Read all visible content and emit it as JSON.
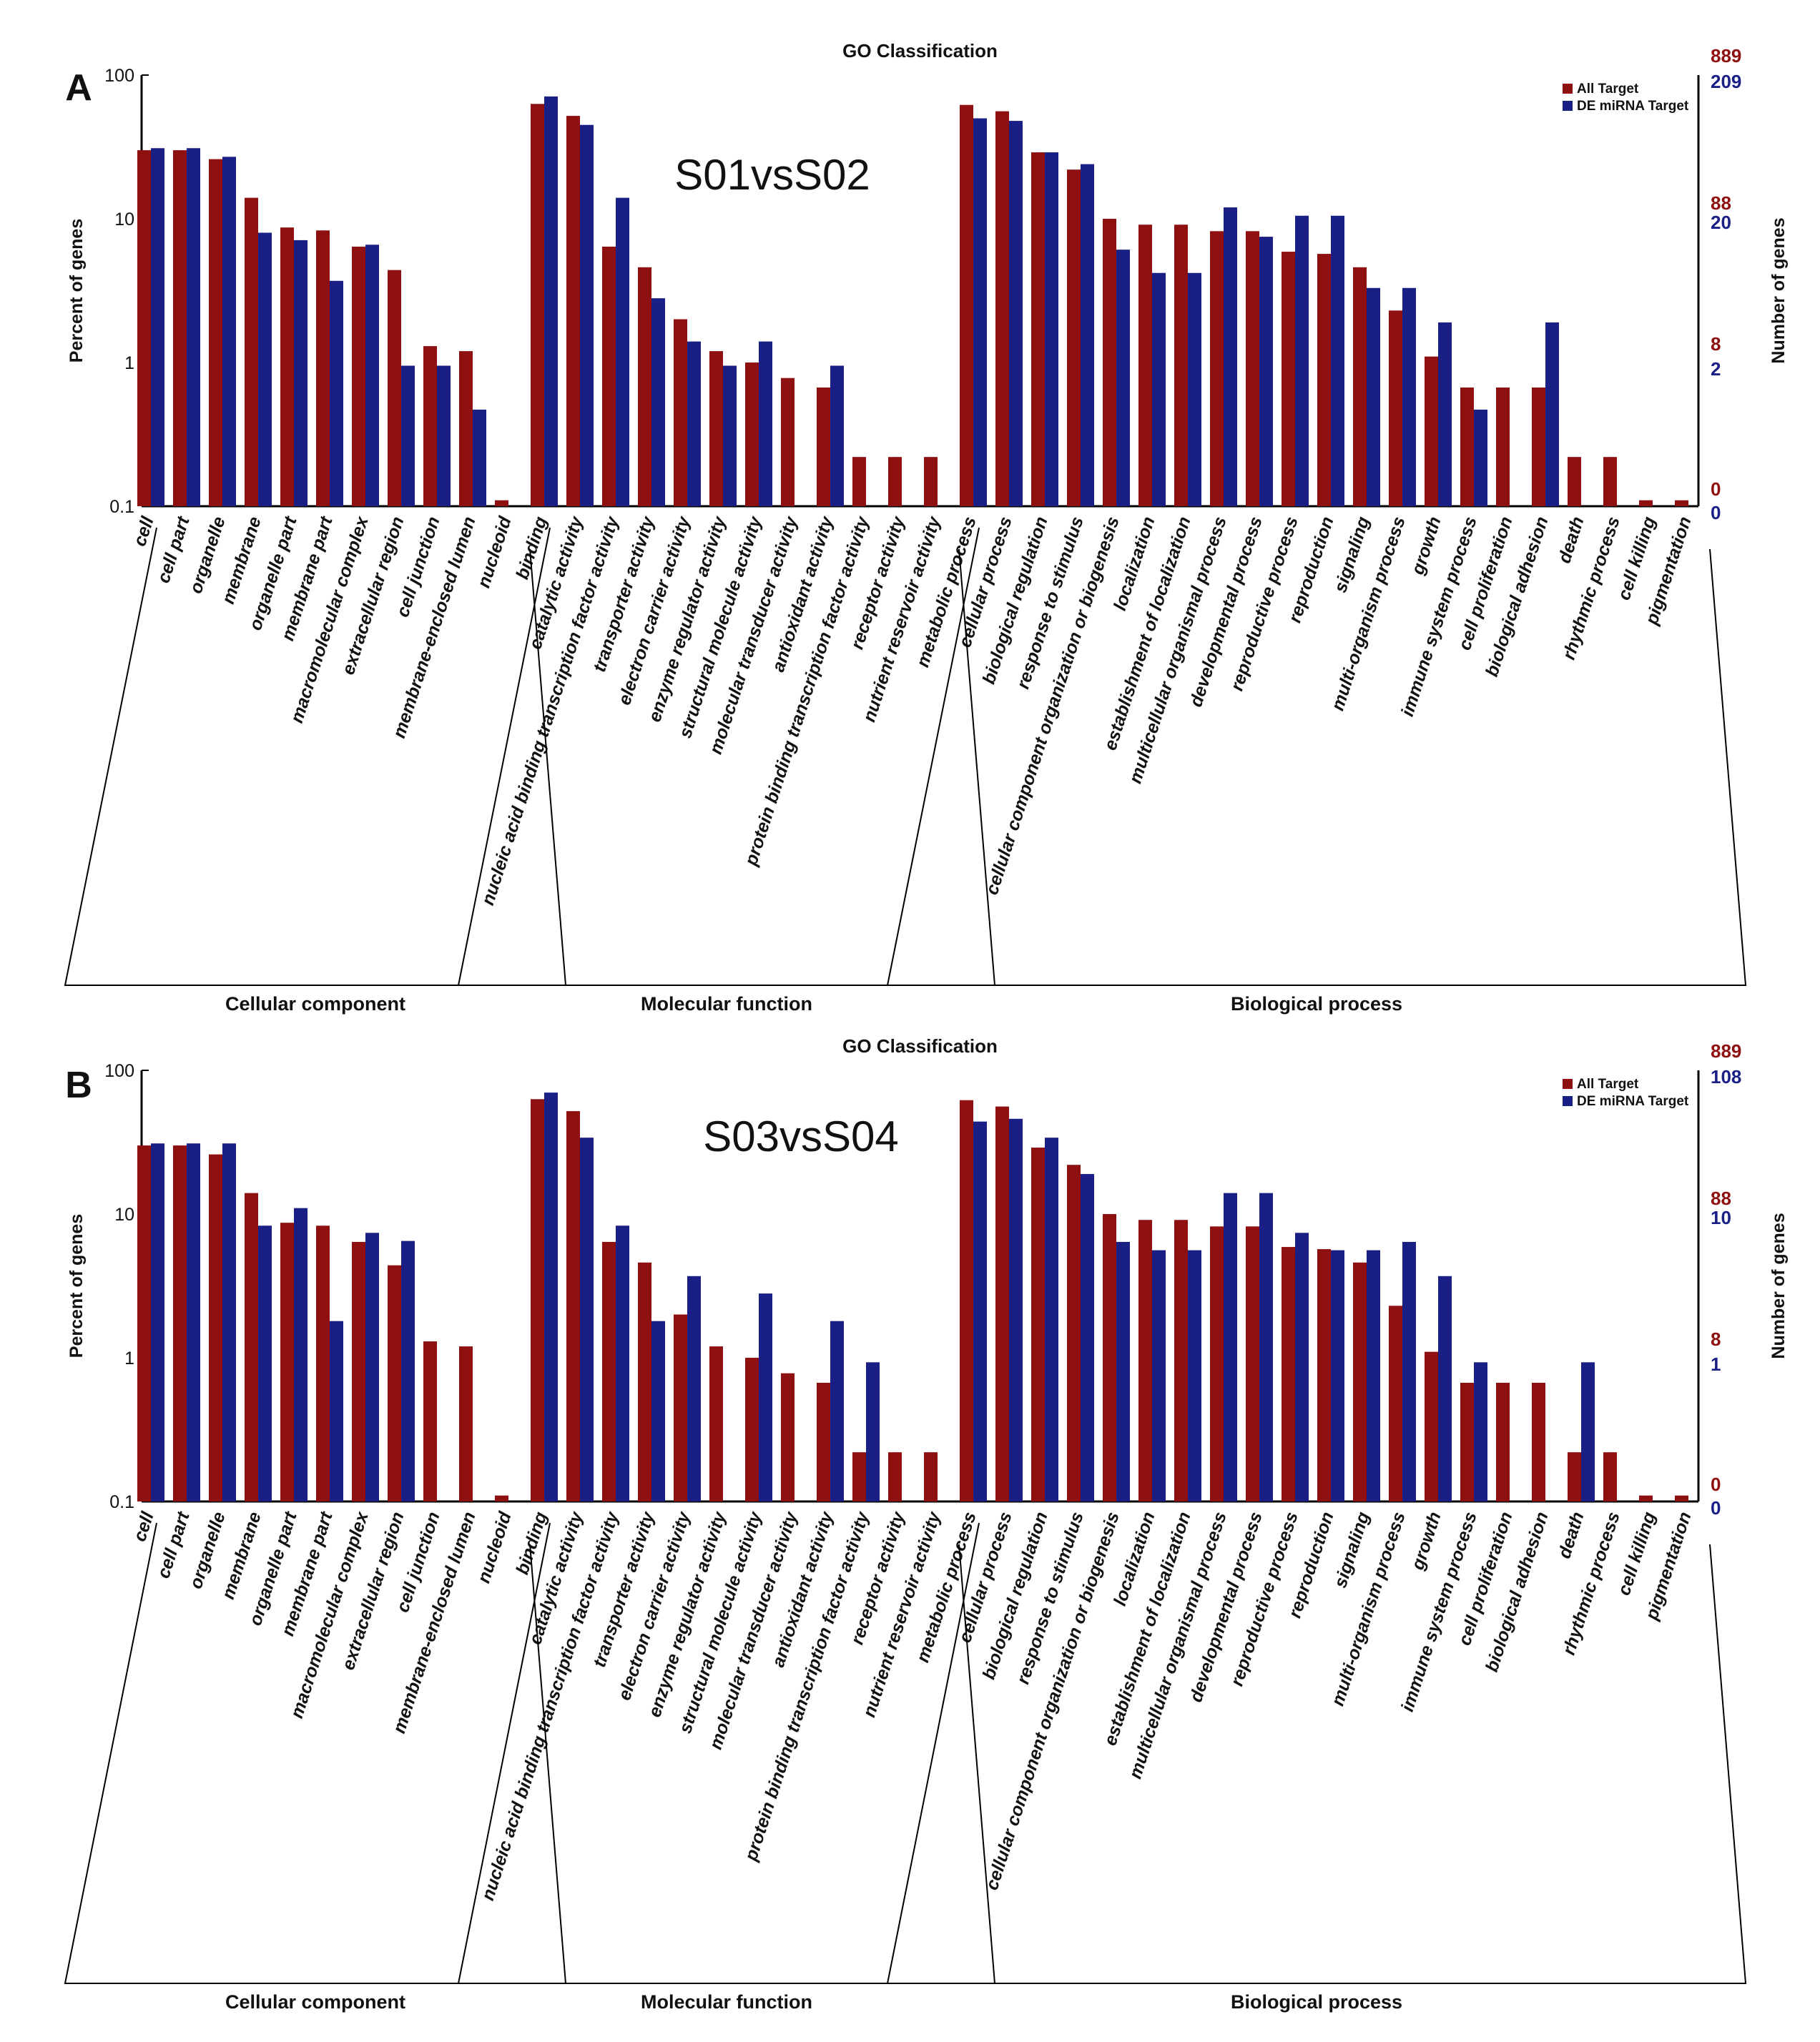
{
  "colors": {
    "all_target": "#8e1010",
    "de_target": "#1a1f86",
    "axis": "#000000"
  },
  "categories": [
    "cell",
    "cell part",
    "organelle",
    "membrane",
    "organelle part",
    "membrane part",
    "macromolecular complex",
    "extracellular region",
    "cell junction",
    "membrane-enclosed lumen",
    "nucleoid",
    "binding",
    "catalytic activity",
    "nucleic acid binding transcription factor activity",
    "transporter activity",
    "electron carrier activity",
    "enzyme regulator activity",
    "structural molecule activity",
    "molecular transducer activity",
    "antioxidant activity",
    "protein binding transcription factor activity",
    "receptor activity",
    "nutrient reservoir activity",
    "metabolic process",
    "cellular process",
    "biological regulation",
    "response to stimulus",
    "cellular component organization or biogenesis",
    "localization",
    "establishment of localization",
    "multicellular organismal process",
    "developmental process",
    "reproductive process",
    "reproduction",
    "signaling",
    "multi-organism process",
    "growth",
    "immune system process",
    "cell proliferation",
    "biological adhesion",
    "death",
    "rhythmic process",
    "cell killing",
    "pigmentation"
  ],
  "groups": [
    {
      "label": "Cellular component",
      "from": 0,
      "to": 10
    },
    {
      "label": "Molecular function",
      "from": 11,
      "to": 22
    },
    {
      "label": "Biological process",
      "from": 23,
      "to": 43
    }
  ],
  "chart_data": [
    {
      "type": "bar",
      "panel_label": "A",
      "title": "GO Classification",
      "inset_label": "S01vsS02",
      "ylabel": "Percent of genes",
      "y2label": "Number of genes",
      "yscale": "log",
      "ylim": [
        0.1,
        100
      ],
      "yticks": [
        "0.1",
        "1",
        "10",
        "100"
      ],
      "right_ticks_all": [
        "889",
        "88",
        "8",
        "0"
      ],
      "right_ticks_de": [
        "209",
        "20",
        "2",
        "0"
      ],
      "legend": [
        "All Target",
        "DE miRNA Target"
      ],
      "series": [
        {
          "name": "All Target",
          "values": [
            30,
            30,
            26,
            14,
            8.7,
            8.3,
            6.4,
            4.4,
            1.3,
            1.2,
            0.11,
            63,
            52,
            6.4,
            4.6,
            2.0,
            1.2,
            1.0,
            0.78,
            0.67,
            0.22,
            0.22,
            0.22,
            62,
            56,
            29,
            22,
            10,
            9.1,
            9.1,
            8.2,
            8.2,
            5.9,
            5.7,
            4.6,
            2.3,
            1.1,
            0.67,
            0.67,
            0.67,
            0.22,
            0.22,
            0.11,
            0.11
          ]
        },
        {
          "name": "DE miRNA Target",
          "values": [
            31,
            31,
            27,
            8.0,
            7.1,
            3.7,
            6.6,
            0.95,
            0.95,
            0.47,
            null,
            71,
            45,
            14,
            2.8,
            1.4,
            0.95,
            1.4,
            null,
            0.95,
            null,
            null,
            null,
            50,
            48,
            29,
            24,
            6.1,
            4.2,
            4.2,
            12,
            7.5,
            10.5,
            10.5,
            3.3,
            3.3,
            1.9,
            0.47,
            null,
            1.9,
            null,
            null,
            null,
            null
          ]
        }
      ]
    },
    {
      "type": "bar",
      "panel_label": "B",
      "title": "GO Classification",
      "inset_label": "S03vsS04",
      "ylabel": "Percent of genes",
      "y2label": "Number of genes",
      "yscale": "log",
      "ylim": [
        0.1,
        100
      ],
      "yticks": [
        "0.1",
        "1",
        "10",
        "100"
      ],
      "right_ticks_all": [
        "889",
        "88",
        "8",
        "0"
      ],
      "right_ticks_de": [
        "108",
        "10",
        "1",
        "0"
      ],
      "legend": [
        "All Target",
        "DE miRNA Target"
      ],
      "series": [
        {
          "name": "All Target",
          "values": [
            30,
            30,
            26,
            14,
            8.7,
            8.3,
            6.4,
            4.4,
            1.3,
            1.2,
            0.11,
            63,
            52,
            6.4,
            4.6,
            2.0,
            1.2,
            1.0,
            0.78,
            0.67,
            0.22,
            0.22,
            0.22,
            62,
            56,
            29,
            22,
            10,
            9.1,
            9.1,
            8.2,
            8.2,
            5.9,
            5.7,
            4.6,
            2.3,
            1.1,
            0.67,
            0.67,
            0.67,
            0.22,
            0.22,
            0.11,
            0.11
          ]
        },
        {
          "name": "DE miRNA Target",
          "values": [
            31,
            31,
            31,
            8.3,
            11,
            1.8,
            7.4,
            6.5,
            null,
            null,
            null,
            70,
            34,
            8.3,
            1.8,
            3.7,
            null,
            2.8,
            null,
            1.8,
            0.93,
            null,
            null,
            44,
            46,
            34,
            19,
            6.4,
            5.6,
            5.6,
            14,
            14,
            7.4,
            5.6,
            5.6,
            6.4,
            3.7,
            0.93,
            null,
            null,
            0.93,
            null,
            null,
            null
          ]
        }
      ]
    }
  ]
}
